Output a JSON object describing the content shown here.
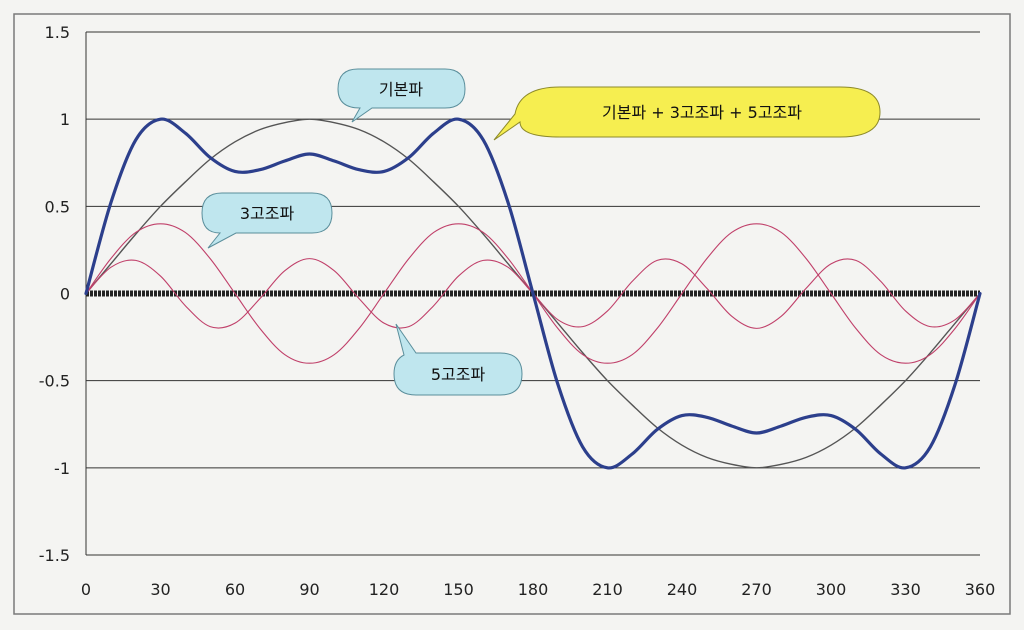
{
  "chart_data": {
    "type": "line",
    "title": "",
    "xlabel": "",
    "ylabel": "",
    "xlim": [
      0,
      360
    ],
    "ylim": [
      -1.5,
      1.5
    ],
    "grid": "horizontal",
    "x_ticks": [
      "0",
      "30",
      "60",
      "90",
      "120",
      "150",
      "180",
      "210",
      "240",
      "270",
      "300",
      "330",
      "360"
    ],
    "y_ticks": [
      "1.5",
      "1",
      "0.5",
      "0",
      "-0.5",
      "-1",
      "-1.5"
    ],
    "x": [
      0,
      10,
      20,
      30,
      40,
      50,
      60,
      70,
      80,
      90,
      100,
      110,
      120,
      130,
      140,
      150,
      160,
      170,
      180,
      190,
      200,
      210,
      220,
      230,
      240,
      250,
      260,
      270,
      280,
      290,
      300,
      310,
      320,
      330,
      340,
      350,
      360
    ],
    "series": [
      {
        "name": "기본파",
        "color": "#555555",
        "values": [
          0,
          0.17,
          0.34,
          0.5,
          0.64,
          0.77,
          0.87,
          0.94,
          0.98,
          1,
          0.98,
          0.94,
          0.87,
          0.77,
          0.64,
          0.5,
          0.34,
          0.17,
          0,
          -0.17,
          -0.34,
          -0.5,
          -0.64,
          -0.77,
          -0.87,
          -0.94,
          -0.98,
          -1,
          -0.98,
          -0.94,
          -0.87,
          -0.77,
          -0.64,
          -0.5,
          -0.34,
          -0.17,
          0
        ]
      },
      {
        "name": "3고조파",
        "color": "#c0406a",
        "values": [
          0,
          0.2,
          0.35,
          0.4,
          0.35,
          0.2,
          0,
          -0.2,
          -0.35,
          -0.4,
          -0.35,
          -0.2,
          0,
          0.2,
          0.35,
          0.4,
          0.35,
          0.2,
          0,
          -0.2,
          -0.35,
          -0.4,
          -0.35,
          -0.2,
          0,
          0.2,
          0.35,
          0.4,
          0.35,
          0.2,
          0,
          -0.2,
          -0.35,
          -0.4,
          -0.35,
          -0.2,
          0
        ]
      },
      {
        "name": "5고조파",
        "color": "#c0406a",
        "values": [
          0,
          0.15,
          0.19,
          0.1,
          -0.07,
          -0.19,
          -0.17,
          -0.03,
          0.13,
          0.2,
          0.13,
          -0.03,
          -0.17,
          -0.19,
          -0.07,
          0.1,
          0.19,
          0.15,
          0,
          -0.15,
          -0.19,
          -0.1,
          0.07,
          0.19,
          0.17,
          0.03,
          -0.13,
          -0.2,
          -0.13,
          0.03,
          0.17,
          0.19,
          0.07,
          -0.1,
          -0.19,
          -0.15,
          0
        ]
      },
      {
        "name": "기본파 + 3고조파 + 5고조파",
        "color": "#2c3f8c",
        "values": [
          0,
          0.52,
          0.88,
          1,
          0.92,
          0.78,
          0.7,
          0.71,
          0.76,
          0.8,
          0.76,
          0.71,
          0.7,
          0.78,
          0.92,
          1,
          0.88,
          0.52,
          0,
          -0.52,
          -0.88,
          -1,
          -0.92,
          -0.78,
          -0.7,
          -0.71,
          -0.76,
          -0.8,
          -0.76,
          -0.71,
          -0.7,
          -0.78,
          -0.92,
          -1,
          -0.88,
          -0.52,
          0
        ]
      }
    ],
    "callouts": [
      {
        "text": "기본파",
        "bg": "#bfe6ee"
      },
      {
        "text": "기본파 + 3고조파 + 5고조파",
        "bg": "#f6ee50"
      },
      {
        "text": "3고조파",
        "bg": "#bfe6ee"
      },
      {
        "text": "5고조파",
        "bg": "#bfe6ee"
      }
    ]
  }
}
